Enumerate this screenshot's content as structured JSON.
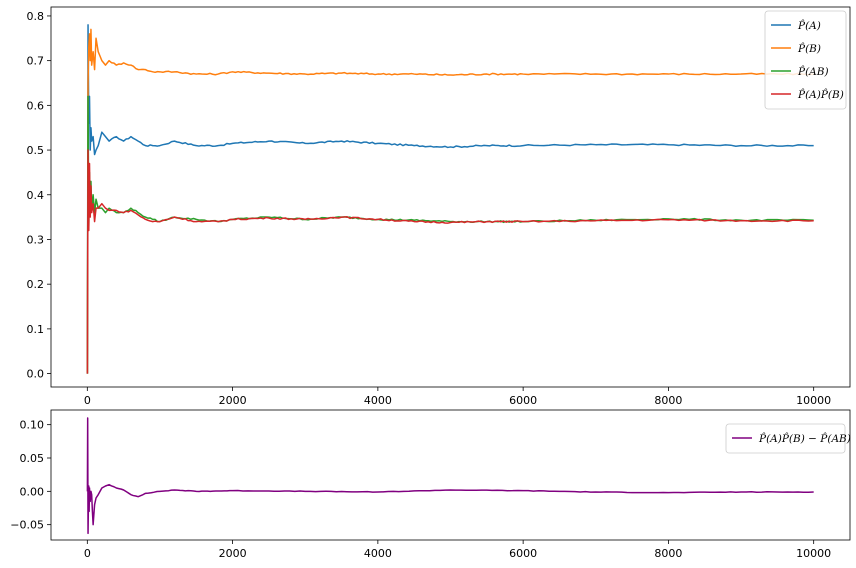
{
  "chart_data": [
    {
      "type": "line",
      "xlim": [
        -500,
        10500
      ],
      "ylim": [
        -0.03,
        0.82
      ],
      "xticks": [
        0,
        2000,
        4000,
        6000,
        8000,
        10000
      ],
      "yticks": [
        0.0,
        0.1,
        0.2,
        0.3,
        0.4,
        0.5,
        0.6,
        0.7,
        0.8
      ],
      "grid": false,
      "legend_position": "top-right",
      "series": [
        {
          "name": "P̂(A)",
          "color": "#1f77b4",
          "x": [
            1,
            10,
            20,
            30,
            40,
            50,
            60,
            80,
            100,
            120,
            150,
            200,
            250,
            300,
            400,
            500,
            600,
            700,
            800,
            900,
            1000,
            1200,
            1500,
            1800,
            2000,
            2500,
            3000,
            3500,
            4000,
            4500,
            5000,
            5500,
            6000,
            7000,
            8000,
            9000,
            10000
          ],
          "y": [
            0.0,
            0.78,
            0.56,
            0.62,
            0.5,
            0.55,
            0.52,
            0.53,
            0.49,
            0.5,
            0.51,
            0.54,
            0.53,
            0.52,
            0.53,
            0.52,
            0.53,
            0.52,
            0.51,
            0.51,
            0.51,
            0.52,
            0.51,
            0.51,
            0.515,
            0.52,
            0.515,
            0.52,
            0.515,
            0.51,
            0.507,
            0.51,
            0.51,
            0.512,
            0.512,
            0.51,
            0.51
          ]
        },
        {
          "name": "P̂(B)",
          "color": "#ff7f0e",
          "x": [
            1,
            10,
            20,
            30,
            40,
            50,
            60,
            80,
            100,
            120,
            150,
            200,
            250,
            300,
            400,
            500,
            600,
            700,
            800,
            900,
            1000,
            1200,
            1500,
            1800,
            2000,
            2500,
            3000,
            3500,
            4000,
            4500,
            5000,
            5500,
            6000,
            7000,
            8000,
            9000,
            10000
          ],
          "y": [
            0.0,
            0.65,
            0.73,
            0.76,
            0.7,
            0.77,
            0.69,
            0.72,
            0.68,
            0.75,
            0.72,
            0.7,
            0.69,
            0.7,
            0.69,
            0.695,
            0.69,
            0.68,
            0.68,
            0.675,
            0.675,
            0.675,
            0.67,
            0.67,
            0.675,
            0.672,
            0.67,
            0.672,
            0.67,
            0.67,
            0.668,
            0.67,
            0.67,
            0.67,
            0.67,
            0.67,
            0.67
          ]
        },
        {
          "name": "P̂(AB)",
          "color": "#2ca02c",
          "x": [
            1,
            10,
            20,
            30,
            40,
            50,
            60,
            80,
            100,
            120,
            150,
            200,
            250,
            300,
            400,
            500,
            600,
            700,
            800,
            900,
            1000,
            1200,
            1500,
            1800,
            2000,
            2500,
            3000,
            3500,
            4000,
            4500,
            5000,
            5500,
            6000,
            7000,
            8000,
            9000,
            10000
          ],
          "y": [
            0.0,
            0.62,
            0.33,
            0.45,
            0.36,
            0.43,
            0.37,
            0.4,
            0.36,
            0.39,
            0.37,
            0.37,
            0.36,
            0.37,
            0.36,
            0.36,
            0.37,
            0.36,
            0.35,
            0.345,
            0.34,
            0.35,
            0.345,
            0.34,
            0.345,
            0.35,
            0.345,
            0.35,
            0.345,
            0.343,
            0.34,
            0.34,
            0.34,
            0.343,
            0.346,
            0.343,
            0.343
          ]
        },
        {
          "name": "P̂(A)P̂(B)",
          "color": "#d62728",
          "x": [
            1,
            10,
            20,
            30,
            40,
            50,
            60,
            80,
            100,
            120,
            150,
            200,
            250,
            300,
            400,
            500,
            600,
            700,
            800,
            900,
            1000,
            1200,
            1500,
            1800,
            2000,
            2500,
            3000,
            3500,
            4000,
            4500,
            5000,
            5500,
            6000,
            7000,
            8000,
            9000,
            10000
          ],
          "y": [
            0.0,
            0.5,
            0.32,
            0.47,
            0.35,
            0.42,
            0.36,
            0.38,
            0.34,
            0.37,
            0.37,
            0.38,
            0.37,
            0.365,
            0.365,
            0.36,
            0.365,
            0.355,
            0.345,
            0.34,
            0.34,
            0.35,
            0.34,
            0.34,
            0.345,
            0.348,
            0.345,
            0.35,
            0.345,
            0.34,
            0.338,
            0.34,
            0.34,
            0.342,
            0.344,
            0.342,
            0.342
          ]
        }
      ]
    },
    {
      "type": "line",
      "xlim": [
        -500,
        10500
      ],
      "ylim": [
        -0.073,
        0.122
      ],
      "xticks": [
        0,
        2000,
        4000,
        6000,
        8000,
        10000
      ],
      "yticks": [
        -0.05,
        0.0,
        0.05,
        0.1
      ],
      "grid": false,
      "legend_position": "top-right",
      "series": [
        {
          "name": "P̂(A)P̂(B) − P̂(AB)",
          "color": "#800080",
          "x": [
            1,
            5,
            10,
            15,
            20,
            25,
            30,
            40,
            50,
            60,
            70,
            80,
            100,
            120,
            150,
            200,
            250,
            300,
            400,
            500,
            600,
            700,
            800,
            1000,
            1200,
            1500,
            2000,
            3000,
            4000,
            5000,
            6000,
            7000,
            8000,
            9000,
            10000
          ],
          "y": [
            0.0,
            0.11,
            -0.063,
            -0.02,
            0.008,
            -0.03,
            0.005,
            -0.015,
            0.0,
            -0.005,
            -0.03,
            -0.05,
            -0.02,
            -0.01,
            -0.005,
            0.005,
            0.008,
            0.01,
            0.005,
            0.002,
            -0.005,
            -0.008,
            -0.003,
            0.0,
            0.002,
            0.0,
            0.001,
            0.0,
            -0.001,
            0.002,
            0.001,
            -0.001,
            -0.002,
            -0.001,
            -0.001
          ]
        }
      ]
    }
  ]
}
